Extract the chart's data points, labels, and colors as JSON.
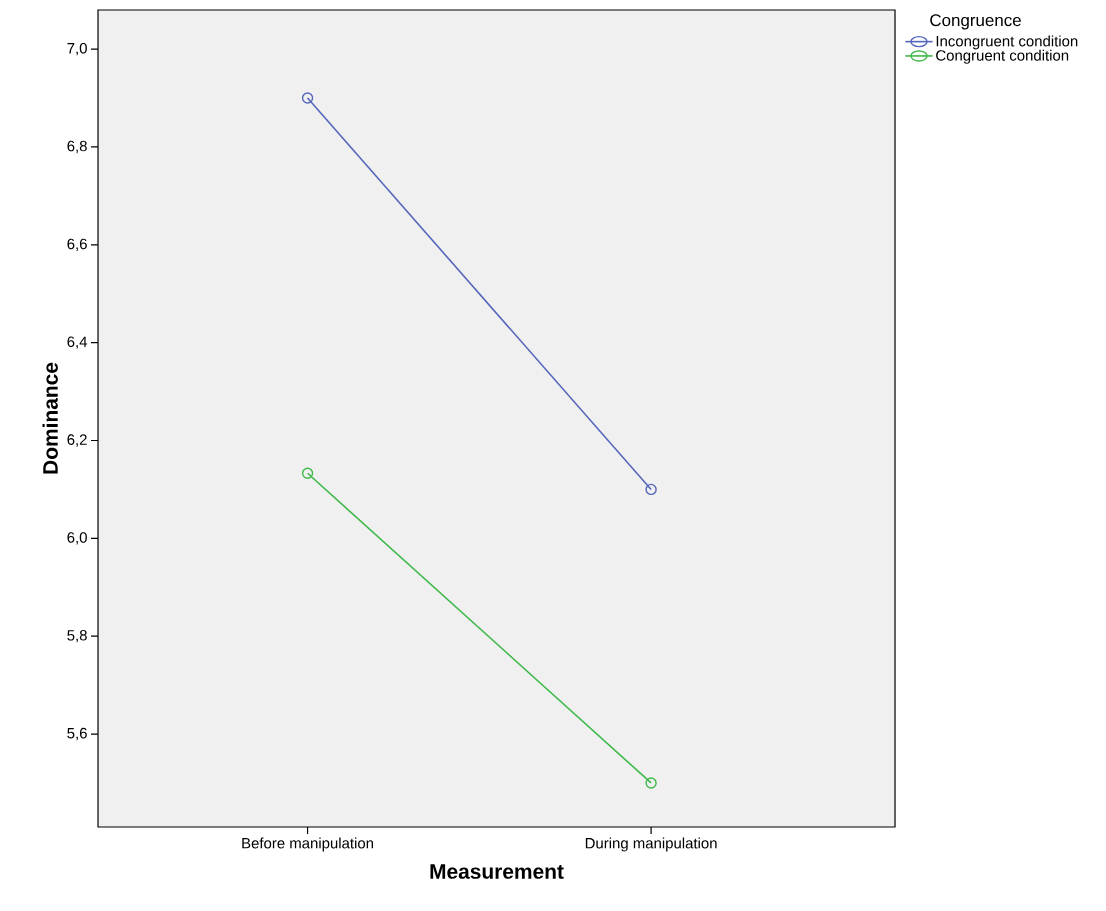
{
  "chart_data": {
    "type": "line",
    "xlabel": "Measurement",
    "ylabel": "Dominance",
    "legend_title": "Congruence",
    "categories": [
      "Before manipulation",
      "During manipulation"
    ],
    "series": [
      {
        "name": "Incongruent condition",
        "color": "#5566bb",
        "values": [
          6.9,
          6.1
        ]
      },
      {
        "name": "Congruent condition",
        "color": "#3fb94a",
        "values": [
          6.133,
          5.5
        ]
      }
    ],
    "ylim": [
      5.41,
      7.08
    ],
    "yticks": [
      {
        "value": 5.6,
        "label": "5,6"
      },
      {
        "value": 5.8,
        "label": "5,8"
      },
      {
        "value": 6.0,
        "label": "6,0"
      },
      {
        "value": 6.2,
        "label": "6,2"
      },
      {
        "value": 6.4,
        "label": "6,4"
      },
      {
        "value": 6.6,
        "label": "6,6"
      },
      {
        "value": 6.8,
        "label": "6,8"
      },
      {
        "value": 7.0,
        "label": "7,0"
      }
    ],
    "marker": "circle",
    "line_style": "solid",
    "legend": "top right",
    "grid": false
  }
}
